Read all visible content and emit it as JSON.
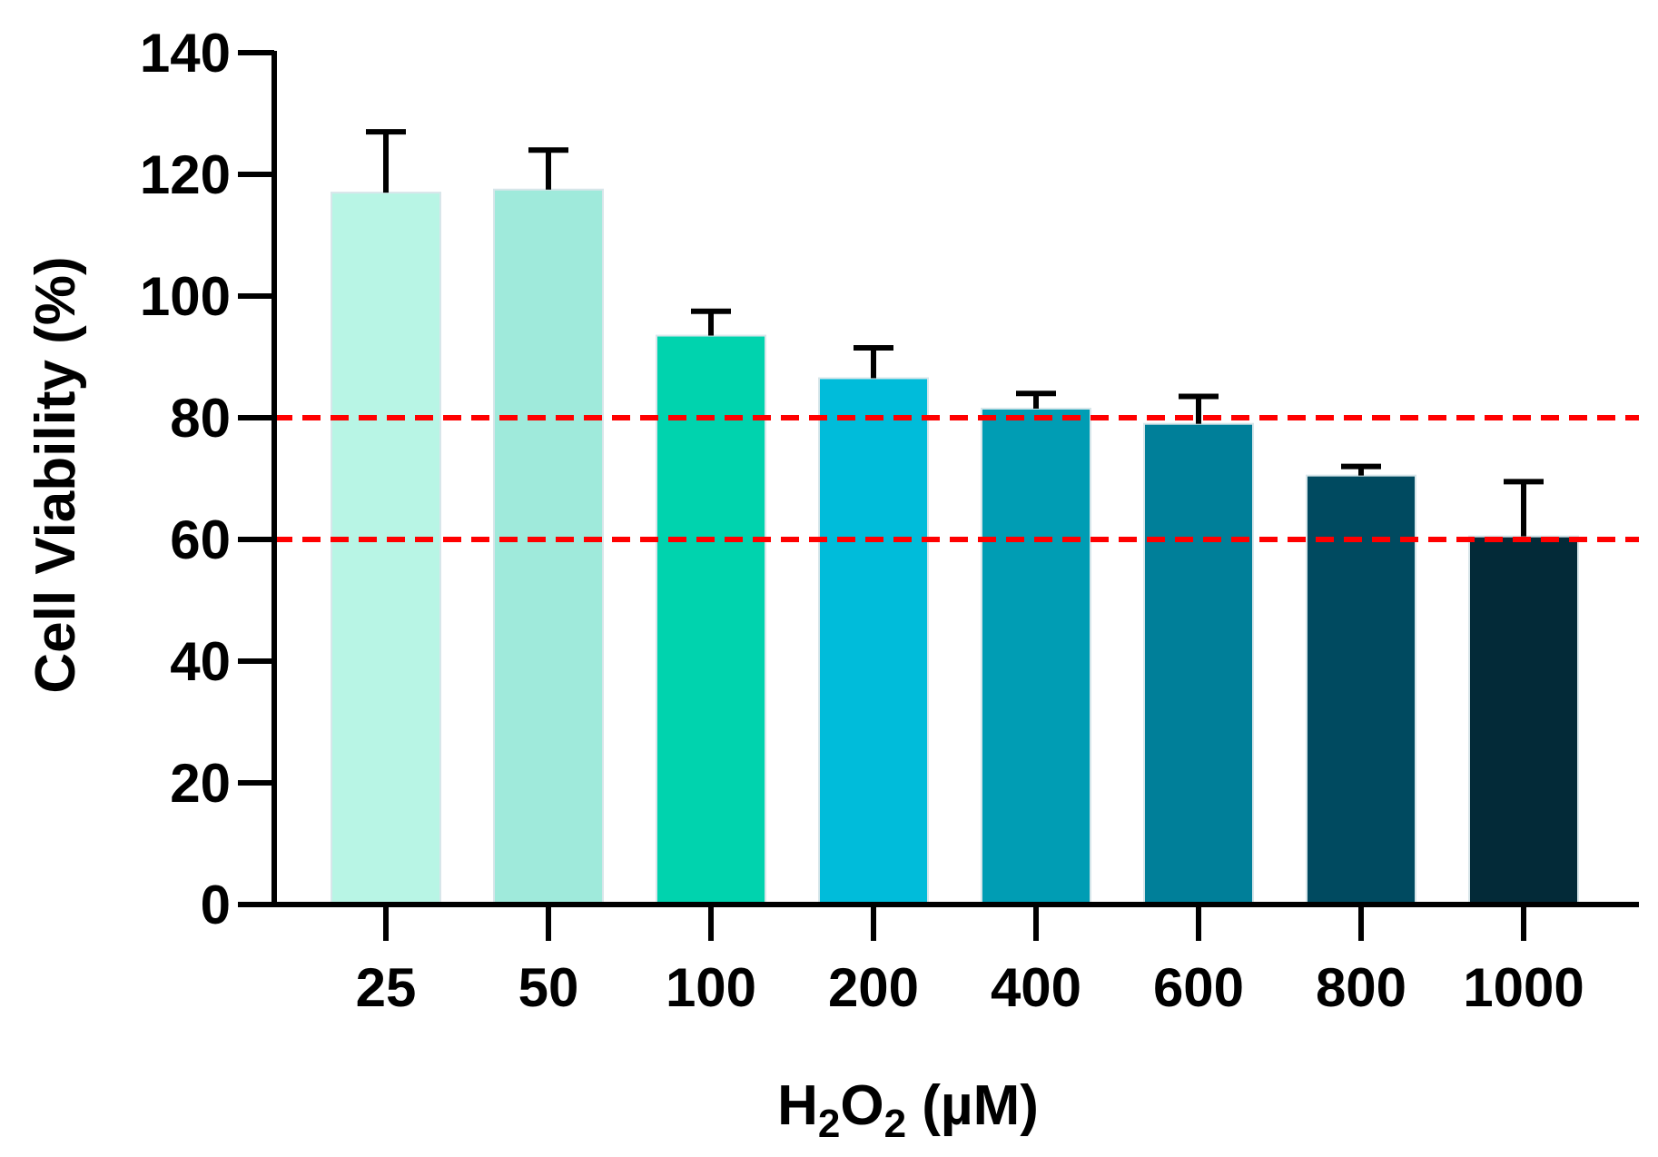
{
  "chart_data": {
    "type": "bar",
    "title": "",
    "xlabel_parts": [
      "H",
      "2",
      "O",
      "2",
      " (µM)"
    ],
    "ylabel": "Cell Viability (%)",
    "categories": [
      "25",
      "50",
      "100",
      "200",
      "400",
      "600",
      "800",
      "1000"
    ],
    "values": [
      117,
      117.5,
      93.5,
      86.5,
      81.5,
      79,
      70.5,
      60.5
    ],
    "errors": [
      10,
      6.5,
      4,
      5,
      2.5,
      4.5,
      1.5,
      9
    ],
    "bar_colors": [
      "#b8f5e5",
      "#9feadb",
      "#00d3ae",
      "#00bcda",
      "#009db4",
      "#007f99",
      "#004a60",
      "#032a38"
    ],
    "ylim": [
      0,
      140
    ],
    "yticks": [
      "0",
      "20",
      "40",
      "60",
      "80",
      "100",
      "120",
      "140"
    ],
    "reference_lines": [
      80,
      60
    ],
    "reference_line_color": "#ff0000",
    "grid": false
  }
}
